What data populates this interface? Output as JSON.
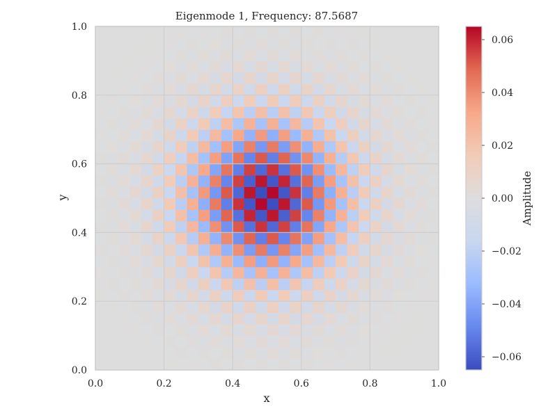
{
  "chart_data": {
    "type": "heatmap",
    "title": "Eigenmode 1, Frequency: 87.5687",
    "xlabel": "x",
    "ylabel": "y",
    "xlim": [
      0.0,
      1.0
    ],
    "ylim": [
      0.0,
      1.0
    ],
    "xticks": [
      "0.0",
      "0.2",
      "0.4",
      "0.6",
      "0.8",
      "1.0"
    ],
    "yticks": [
      "0.0",
      "0.2",
      "0.4",
      "0.6",
      "0.8",
      "1.0"
    ],
    "grid": true,
    "colormap": "coolwarm",
    "colormap_stops": [
      "#3b4cc0",
      "#6788ee",
      "#9abbff",
      "#c9d7f0",
      "#dddddd",
      "#f2cbb7",
      "#f7a889",
      "#e26952",
      "#b40426"
    ],
    "grid_cells": [
      30,
      30
    ],
    "pattern": "checkerboard with alternating sign, amplitude peaking at center (0.5, 0.5) and decaying toward edges",
    "value_range": [
      -0.065,
      0.065
    ],
    "peak_amplitude": 0.065,
    "colorbar": {
      "label": "Amplitude",
      "ticks": [
        "0.06",
        "0.04",
        "0.02",
        "0.00",
        "−0.02",
        "−0.04",
        "−0.06"
      ],
      "tick_values": [
        0.06,
        0.04,
        0.02,
        0.0,
        -0.02,
        -0.04,
        -0.06
      ]
    }
  }
}
